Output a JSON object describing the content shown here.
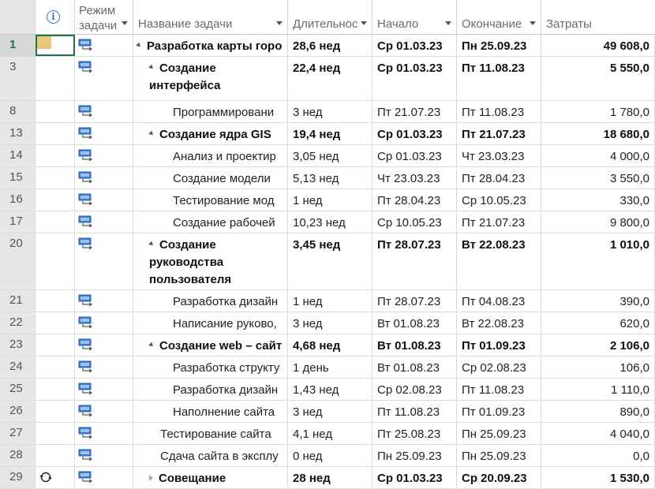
{
  "columns": {
    "mode": [
      "Режим",
      "задачи"
    ],
    "name": "Название задачи",
    "duration": "Длительнос",
    "start": "Начало",
    "finish": "Окончание",
    "cost": "Затраты"
  },
  "rows": [
    {
      "id": "1",
      "name": "Разработка карты горо",
      "duration": "28,6 нед",
      "start": "Ср 01.03.23",
      "finish": "Пн 25.09.23",
      "cost": "49 608,0",
      "bold": true,
      "level": 0,
      "summary": "expanded",
      "selected": true,
      "indicator": "note"
    },
    {
      "id": "3",
      "name": "Создание интерфейса",
      "duration": "22,4 нед",
      "start": "Ср 01.03.23",
      "finish": "Пт 11.08.23",
      "cost": "5 550,0",
      "bold": true,
      "level": 1,
      "summary": "expanded"
    },
    {
      "id": "8",
      "name": "Программировани",
      "duration": "3 нед",
      "start": "Пт 21.07.23",
      "finish": "Пт 11.08.23",
      "cost": "1 780,0",
      "level": 2
    },
    {
      "id": "13",
      "name": "Создание ядра GIS",
      "duration": "19,4 нед",
      "start": "Ср 01.03.23",
      "finish": "Пт 21.07.23",
      "cost": "18 680,0",
      "bold": true,
      "level": 1,
      "summary": "expanded"
    },
    {
      "id": "14",
      "name": "Анализ и проектир",
      "duration": "3,05 нед",
      "start": "Ср 01.03.23",
      "finish": "Чт 23.03.23",
      "cost": "4 000,0",
      "level": 2
    },
    {
      "id": "15",
      "name": "Создание модели",
      "duration": "5,13 нед",
      "start": "Чт 23.03.23",
      "finish": "Пт 28.04.23",
      "cost": "3 550,0",
      "level": 2
    },
    {
      "id": "16",
      "name": "Тестирование мод",
      "duration": "1 нед",
      "start": "Пт 28.04.23",
      "finish": "Ср 10.05.23",
      "cost": "330,0",
      "level": 2
    },
    {
      "id": "17",
      "name": "Создание рабочей",
      "duration": "10,23 нед",
      "start": "Ср 10.05.23",
      "finish": "Пт 21.07.23",
      "cost": "9 800,0",
      "level": 2
    },
    {
      "id": "20",
      "name": "Создание руководства пользователя",
      "duration": "3,45 нед",
      "start": "Пт 28.07.23",
      "finish": "Вт 22.08.23",
      "cost": "1 010,0",
      "bold": true,
      "level": 1,
      "summary": "expanded"
    },
    {
      "id": "21",
      "name": "Разработка дизайн",
      "duration": "1 нед",
      "start": "Пт 28.07.23",
      "finish": "Пт 04.08.23",
      "cost": "390,0",
      "level": 2
    },
    {
      "id": "22",
      "name": "Написание руково,",
      "duration": "3 нед",
      "start": "Вт 01.08.23",
      "finish": "Вт 22.08.23",
      "cost": "620,0",
      "level": 2
    },
    {
      "id": "23",
      "name": "Создание web – сайт",
      "duration": "4,68 нед",
      "start": "Вт 01.08.23",
      "finish": "Пт 01.09.23",
      "cost": "2 106,0",
      "bold": true,
      "level": 1,
      "summary": "expanded"
    },
    {
      "id": "24",
      "name": "Разработка структу",
      "duration": "1 день",
      "start": "Вт 01.08.23",
      "finish": "Ср 02.08.23",
      "cost": "106,0",
      "level": 2
    },
    {
      "id": "25",
      "name": "Разработка дизайн",
      "duration": "1,43 нед",
      "start": "Ср 02.08.23",
      "finish": "Пт 11.08.23",
      "cost": "1 110,0",
      "level": 2
    },
    {
      "id": "26",
      "name": "Наполнение сайта",
      "duration": "3 нед",
      "start": "Пт 11.08.23",
      "finish": "Пт 01.09.23",
      "cost": "890,0",
      "level": 2
    },
    {
      "id": "27",
      "name": "Тестирование сайта",
      "duration": "4,1 нед",
      "start": "Пт 25.08.23",
      "finish": "Пн 25.09.23",
      "cost": "4 040,0",
      "level": 1
    },
    {
      "id": "28",
      "name": "Сдача сайта в эксплу",
      "duration": "0 нед",
      "start": "Пн 25.09.23",
      "finish": "Пн 25.09.23",
      "cost": "0,0",
      "level": 1
    },
    {
      "id": "29",
      "name": "Совещание",
      "duration": "28 нед",
      "start": "Ср 01.03.23",
      "finish": "Ср 20.09.23",
      "cost": "1 530,0",
      "bold": true,
      "level": 1,
      "summary": "collapsed",
      "indicator": "recurring"
    }
  ],
  "icons": {
    "info": "info-icon",
    "mode": "auto-schedule-mode-icon",
    "note": "note-icon",
    "recurring": "recurring-task-icon"
  },
  "colors": {
    "selection": "#217346",
    "row_header": "#e6e6e6",
    "info": "#3a78c4",
    "mode_icon": "#3f7fd0"
  }
}
